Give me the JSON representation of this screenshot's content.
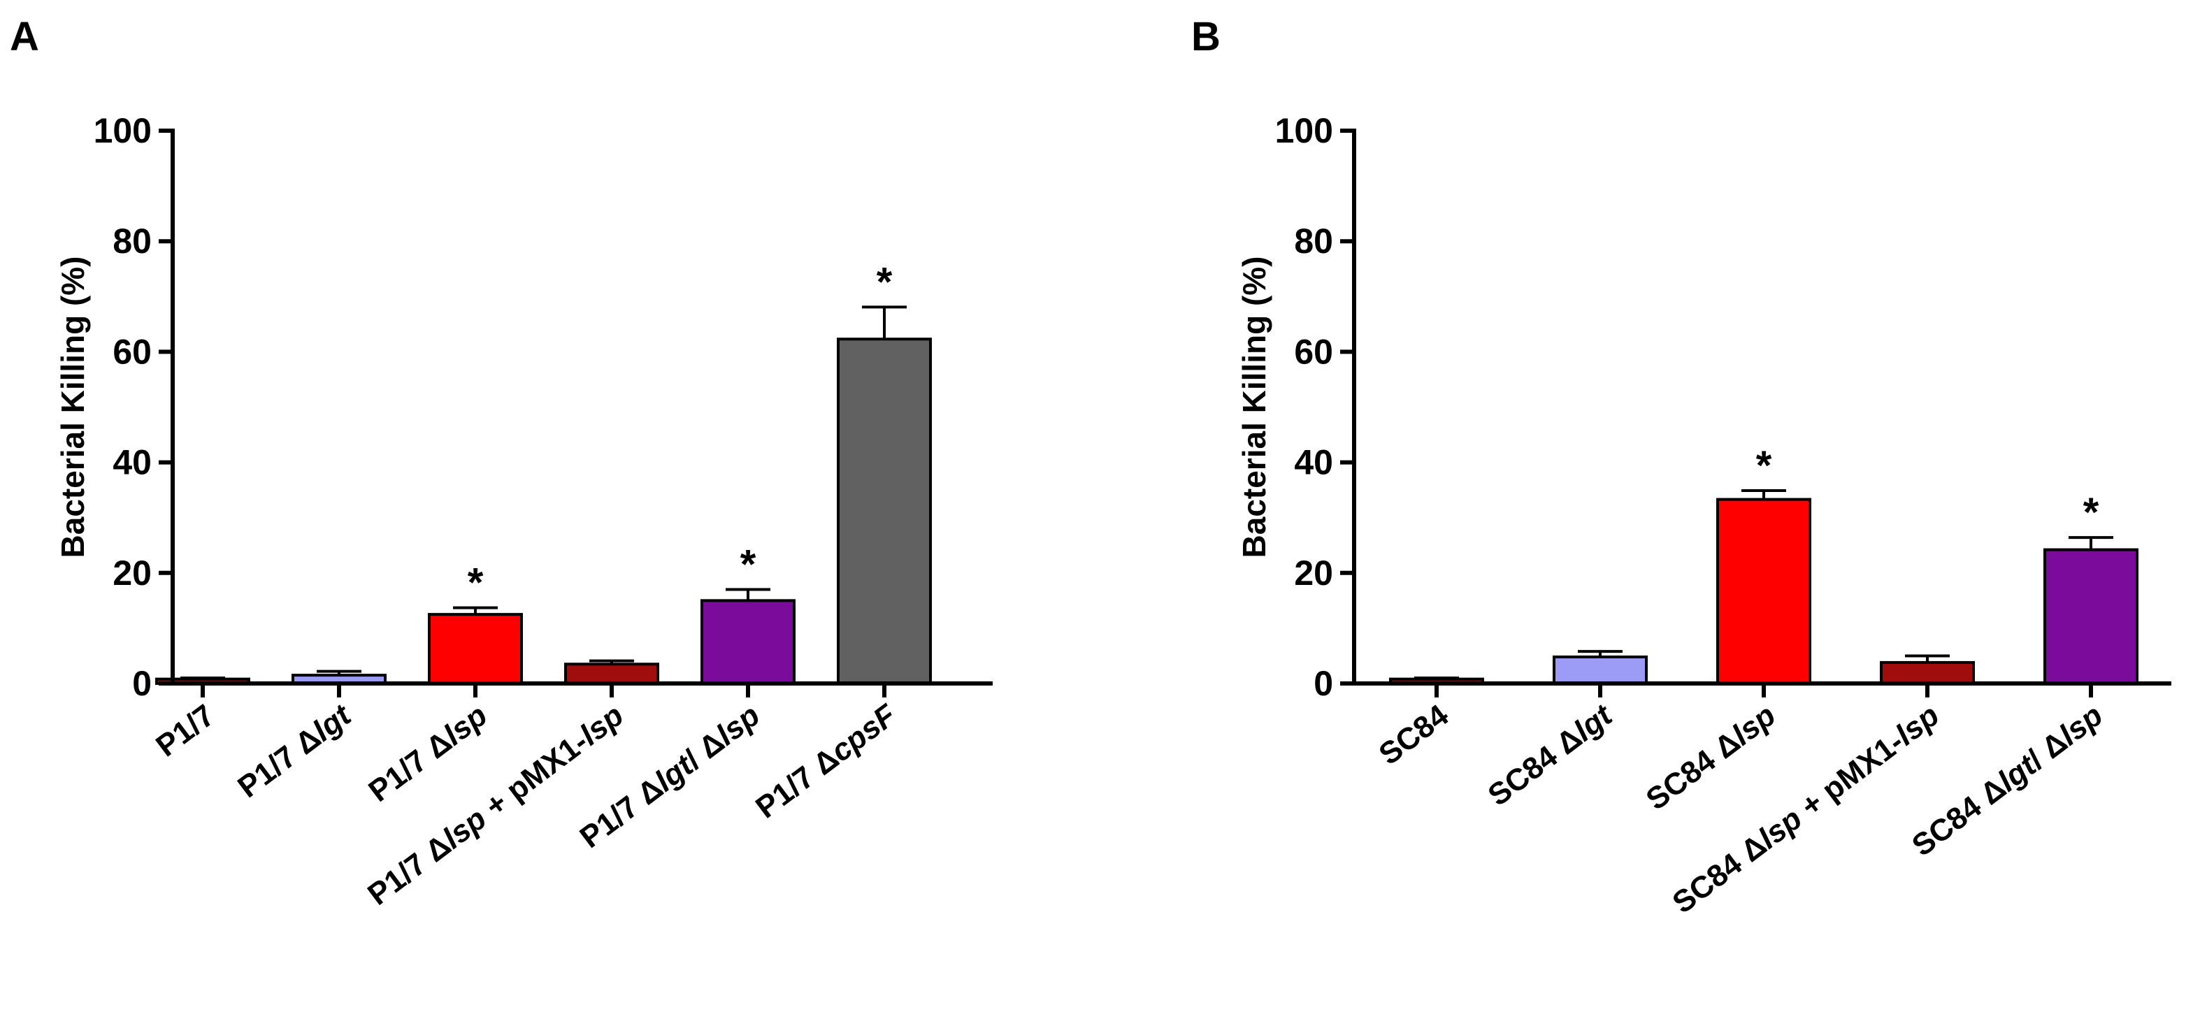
{
  "chart_data": [
    {
      "panel_label": "A",
      "type": "bar",
      "ylabel": "Bacterial Killing (%)",
      "xlabel": "",
      "ylim": [
        0,
        100
      ],
      "yticks": [
        0,
        20,
        40,
        60,
        80,
        100
      ],
      "grid": false,
      "categories": [
        {
          "parts": [
            {
              "t": "P1/7",
              "i": false
            }
          ]
        },
        {
          "parts": [
            {
              "t": "P1/7  Δ",
              "i": false
            },
            {
              "t": "lgt",
              "i": true
            }
          ]
        },
        {
          "parts": [
            {
              "t": "P1/7  Δ",
              "i": false
            },
            {
              "t": "lsp",
              "i": true
            }
          ]
        },
        {
          "parts": [
            {
              "t": "P1/7  Δ",
              "i": false
            },
            {
              "t": "lsp",
              "i": true
            },
            {
              "t": " + pMX1-",
              "i": false
            },
            {
              "t": "lsp",
              "i": true
            }
          ]
        },
        {
          "parts": [
            {
              "t": "P1/7  Δ",
              "i": false
            },
            {
              "t": "lgt",
              "i": true
            },
            {
              "t": "/ Δ",
              "i": false
            },
            {
              "t": "lsp",
              "i": true
            }
          ]
        },
        {
          "parts": [
            {
              "t": "P1/7  Δ",
              "i": false
            },
            {
              "t": "cpsF",
              "i": true
            }
          ]
        }
      ],
      "values": [
        0.8,
        1.5,
        12.5,
        3.5,
        15,
        62.3
      ],
      "errors": [
        0.2,
        0.7,
        1.2,
        0.6,
        2.0,
        5.8
      ],
      "colors": [
        "#6f1b1b",
        "#9c9cf7",
        "#ff0000",
        "#a00d0d",
        "#7b0b9b",
        "#616161"
      ],
      "significance": [
        "",
        "",
        "*",
        "",
        "*",
        "*"
      ]
    },
    {
      "panel_label": "B",
      "type": "bar",
      "ylabel": "Bacterial Killing (%)",
      "xlabel": "",
      "ylim": [
        0,
        100
      ],
      "yticks": [
        0,
        20,
        40,
        60,
        80,
        100
      ],
      "grid": false,
      "categories": [
        {
          "parts": [
            {
              "t": "SC84",
              "i": false
            }
          ]
        },
        {
          "parts": [
            {
              "t": "SC84 Δ",
              "i": false
            },
            {
              "t": "lgt",
              "i": true
            }
          ]
        },
        {
          "parts": [
            {
              "t": "SC84 Δ",
              "i": false
            },
            {
              "t": "lsp",
              "i": true
            }
          ]
        },
        {
          "parts": [
            {
              "t": "SC84 Δ",
              "i": false
            },
            {
              "t": "lsp",
              "i": true
            },
            {
              "t": " +  pMX1-",
              "i": false
            },
            {
              "t": "lsp",
              "i": true
            }
          ]
        },
        {
          "parts": [
            {
              "t": "SC84 Δ",
              "i": false
            },
            {
              "t": "lgt",
              "i": true
            },
            {
              "t": "/ Δ",
              "i": false
            },
            {
              "t": "lsp",
              "i": true
            }
          ]
        }
      ],
      "values": [
        0.8,
        4.8,
        33.3,
        3.8,
        24.2
      ],
      "errors": [
        0.2,
        1.0,
        1.6,
        1.2,
        2.2
      ],
      "colors": [
        "#6f1b1b",
        "#9c9cf7",
        "#ff0000",
        "#a00d0d",
        "#7b0b9b"
      ],
      "significance": [
        "",
        "",
        "*",
        "",
        "*"
      ]
    }
  ]
}
